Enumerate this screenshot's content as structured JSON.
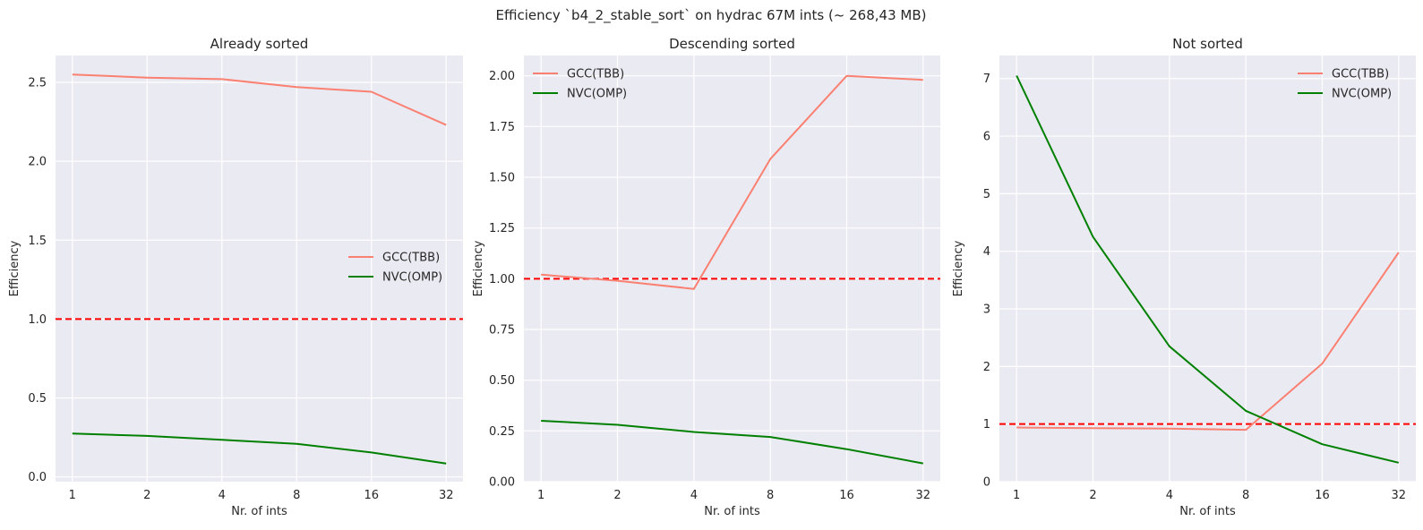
{
  "suptitle": "Efficiency `b4_2_stable_sort` on hydrac 67M ints (~ 268,43 MB)",
  "colors": {
    "gcc": "#fa8072",
    "nvc": "#008000",
    "reference": "#ff0000",
    "panel_bg": "#eaeaf2",
    "grid": "#ffffff"
  },
  "chart_data": [
    {
      "type": "line",
      "title": "Already sorted",
      "xlabel": "Nr. of ints",
      "ylabel": "Efficiency",
      "x": [
        1,
        2,
        4,
        8,
        16,
        32
      ],
      "x_tick_labels": [
        "1",
        "2",
        "4",
        "8",
        "16",
        "32"
      ],
      "x_scale": "log2",
      "ylim": [
        -0.03,
        2.67
      ],
      "y_ticks": [
        0.0,
        0.5,
        1.0,
        1.5,
        2.0,
        2.5
      ],
      "y_tick_labels": [
        "0.0",
        "0.5",
        "1.0",
        "1.5",
        "2.0",
        "2.5"
      ],
      "reference_line": 1.0,
      "legend_position": "center-right",
      "grid": true,
      "series": [
        {
          "name": "GCC(TBB)",
          "color": "#fa8072",
          "values": [
            2.55,
            2.53,
            2.52,
            2.47,
            2.44,
            2.23
          ]
        },
        {
          "name": "NVC(OMP)",
          "color": "#008000",
          "values": [
            0.275,
            0.26,
            0.235,
            0.21,
            0.155,
            0.085
          ]
        }
      ]
    },
    {
      "type": "line",
      "title": "Descending sorted",
      "xlabel": "Nr. of ints",
      "ylabel": "Efficiency",
      "x": [
        1,
        2,
        4,
        8,
        16,
        32
      ],
      "x_tick_labels": [
        "1",
        "2",
        "4",
        "8",
        "16",
        "32"
      ],
      "x_scale": "log2",
      "ylim": [
        0.0,
        2.1
      ],
      "y_ticks": [
        0.0,
        0.25,
        0.5,
        0.75,
        1.0,
        1.25,
        1.5,
        1.75,
        2.0
      ],
      "y_tick_labels": [
        "0.00",
        "0.25",
        "0.50",
        "0.75",
        "1.00",
        "1.25",
        "1.50",
        "1.75",
        "2.00"
      ],
      "reference_line": 1.0,
      "legend_position": "upper-left",
      "grid": true,
      "series": [
        {
          "name": "GCC(TBB)",
          "color": "#fa8072",
          "values": [
            1.02,
            0.99,
            0.95,
            1.59,
            2.0,
            1.98
          ]
        },
        {
          "name": "NVC(OMP)",
          "color": "#008000",
          "values": [
            0.3,
            0.28,
            0.245,
            0.22,
            0.16,
            0.09
          ]
        }
      ]
    },
    {
      "type": "line",
      "title": "Not sorted",
      "xlabel": "Nr. of ints",
      "ylabel": "Efficiency",
      "x": [
        1,
        2,
        4,
        8,
        16,
        32
      ],
      "x_tick_labels": [
        "1",
        "2",
        "4",
        "8",
        "16",
        "32"
      ],
      "x_scale": "log2",
      "ylim": [
        0.0,
        7.4
      ],
      "y_ticks": [
        0,
        1,
        2,
        3,
        4,
        5,
        6,
        7
      ],
      "y_tick_labels": [
        "0",
        "1",
        "2",
        "3",
        "4",
        "5",
        "6",
        "7"
      ],
      "reference_line": 1.0,
      "legend_position": "upper-right",
      "grid": true,
      "series": [
        {
          "name": "GCC(TBB)",
          "color": "#fa8072",
          "values": [
            0.94,
            0.93,
            0.92,
            0.9,
            2.05,
            3.98
          ]
        },
        {
          "name": "NVC(OMP)",
          "color": "#008000",
          "values": [
            7.05,
            4.25,
            2.35,
            1.23,
            0.65,
            0.33
          ]
        }
      ]
    }
  ]
}
